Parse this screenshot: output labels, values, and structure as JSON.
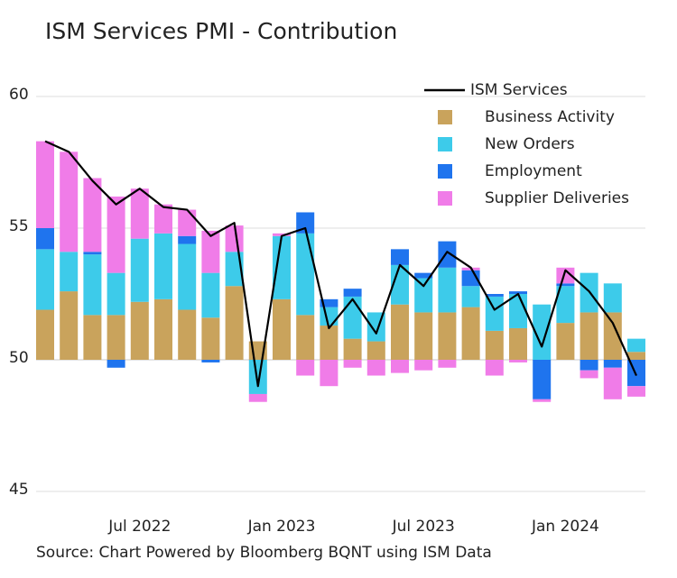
{
  "chart_data": {
    "type": "bar",
    "title": "ISM Services PMI - Contribution",
    "source": "Source: Chart Powered by Bloomberg BQNT using ISM Data",
    "x": [
      "Mar 2022",
      "Apr 2022",
      "May 2022",
      "Jun 2022",
      "Jul 2022",
      "Aug 2022",
      "Sep 2022",
      "Oct 2022",
      "Nov 2022",
      "Dec 2022",
      "Jan 2023",
      "Feb 2023",
      "Mar 2023",
      "Apr 2023",
      "May 2023",
      "Jun 2023",
      "Jul 2023",
      "Aug 2023",
      "Sep 2023",
      "Oct 2023",
      "Nov 2023",
      "Dec 2023",
      "Jan 2024",
      "Feb 2024",
      "Mar 2024",
      "Apr 2024"
    ],
    "xticks": [
      "Jul 2022",
      "Jan 2023",
      "Jul 2023",
      "Jan 2024"
    ],
    "baseline": 50,
    "series": [
      {
        "name": "ISM Services",
        "type": "line",
        "color": "#000000",
        "values": [
          58.3,
          57.9,
          56.8,
          55.9,
          56.5,
          55.8,
          55.7,
          54.7,
          55.2,
          49.0,
          54.7,
          55.0,
          51.2,
          52.3,
          51.0,
          53.6,
          52.8,
          54.1,
          53.5,
          51.9,
          52.5,
          50.5,
          53.4,
          52.6,
          51.4,
          49.4
        ]
      },
      {
        "name": "Business Activity",
        "type": "bar",
        "color": "#c9a35c",
        "values": [
          1.9,
          2.6,
          1.7,
          1.7,
          2.2,
          2.3,
          1.9,
          1.6,
          2.8,
          0.7,
          2.3,
          1.7,
          1.3,
          0.8,
          0.7,
          2.1,
          1.8,
          1.8,
          2.0,
          1.1,
          1.2,
          0,
          1.4,
          1.8,
          1.8,
          0.3
        ]
      },
      {
        "name": "New Orders",
        "type": "bar",
        "color": "#3dcbea",
        "values": [
          2.3,
          1.5,
          2.3,
          1.6,
          2.4,
          2.5,
          2.5,
          1.7,
          1.3,
          -1.3,
          2.4,
          3.1,
          0.7,
          1.6,
          1.1,
          1.5,
          1.3,
          1.7,
          0.8,
          1.3,
          1.3,
          2.1,
          1.4,
          1.5,
          1.1,
          0.5
        ]
      },
      {
        "name": "Employment",
        "type": "bar",
        "color": "#1f74ee",
        "values": [
          0.8,
          0,
          0.1,
          -0.3,
          0,
          0,
          0.3,
          -0.1,
          0,
          0,
          0,
          0.8,
          0.3,
          0.3,
          0,
          0.6,
          0.2,
          1.0,
          0.6,
          0.1,
          0.1,
          -1.5,
          0.1,
          -0.4,
          -0.3,
          -1.0
        ]
      },
      {
        "name": "Supplier Deliveries",
        "type": "bar",
        "color": "#f07ce8",
        "values": [
          3.3,
          3.8,
          2.8,
          2.9,
          1.9,
          1.1,
          1.0,
          1.6,
          1.0,
          -0.3,
          0.1,
          -0.6,
          -1.0,
          -0.3,
          -0.6,
          -0.5,
          -0.4,
          -0.3,
          0.1,
          -0.6,
          -0.1,
          -0.1,
          0.6,
          -0.3,
          -1.2,
          -0.4
        ]
      }
    ],
    "ylim": [
      44.5,
      60.5
    ],
    "yticks": [
      45,
      50,
      55,
      60
    ],
    "grid": true,
    "legend": "top-right"
  }
}
